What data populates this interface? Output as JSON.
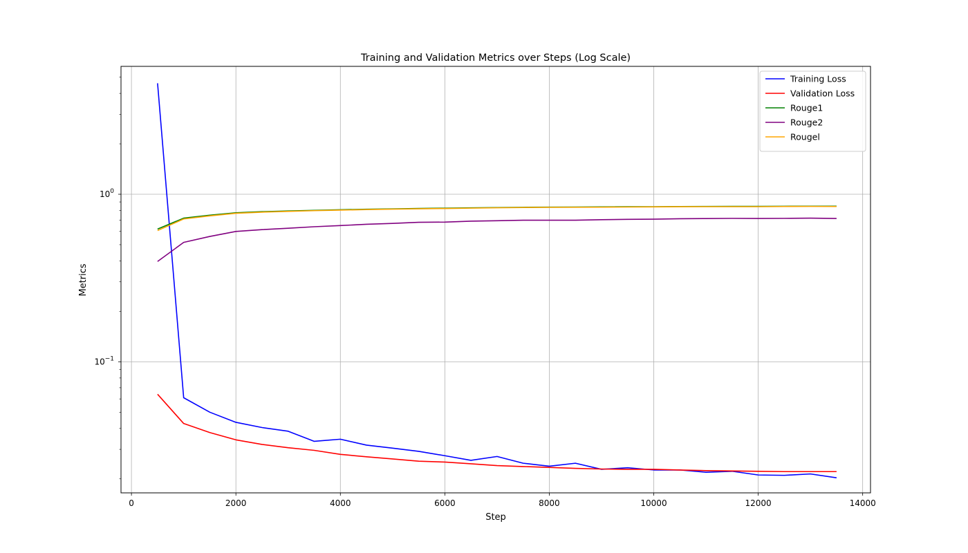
{
  "chart_data": {
    "type": "line",
    "title": "Training and Validation Metrics over Steps (Log Scale)",
    "xlabel": "Step",
    "ylabel": "Metrics",
    "xlim": [
      -200,
      14150
    ],
    "ylim": [
      0.0165,
      5.8
    ],
    "yscale": "log",
    "grid": true,
    "legend_position": "top-right",
    "x_ticks": [
      0,
      2000,
      4000,
      6000,
      8000,
      10000,
      12000,
      14000
    ],
    "x_tick_labels": [
      "0",
      "2000",
      "4000",
      "6000",
      "8000",
      "10000",
      "12000",
      "14000"
    ],
    "y_major_ticks": [
      {
        "value": 0.1,
        "label": "10",
        "exp": "−1"
      },
      {
        "value": 1,
        "label": "10",
        "exp": "0"
      }
    ],
    "x": [
      500,
      1000,
      1500,
      2000,
      2500,
      3000,
      3500,
      4000,
      4500,
      5000,
      5500,
      6000,
      6500,
      7000,
      7500,
      8000,
      8500,
      9000,
      9500,
      10000,
      10500,
      11000,
      11500,
      12000,
      12500,
      13000,
      13500
    ],
    "series": [
      {
        "name": "Training Loss",
        "color": "#0000ff",
        "values": [
          4.6,
          0.061,
          0.05,
          0.0435,
          0.0405,
          0.0385,
          0.0335,
          0.0345,
          0.0318,
          0.0305,
          0.0292,
          0.0275,
          0.0258,
          0.0272,
          0.0248,
          0.0238,
          0.0248,
          0.0228,
          0.0233,
          0.0226,
          0.0226,
          0.0219,
          0.0222,
          0.0211,
          0.021,
          0.0214,
          0.0203
        ]
      },
      {
        "name": "Validation Loss",
        "color": "#ff0000",
        "values": [
          0.064,
          0.0428,
          0.0378,
          0.0342,
          0.0321,
          0.0307,
          0.0296,
          0.028,
          0.0271,
          0.0263,
          0.0255,
          0.0252,
          0.0246,
          0.024,
          0.0237,
          0.0234,
          0.0231,
          0.0229,
          0.0228,
          0.0228,
          0.0226,
          0.0224,
          0.0223,
          0.0222,
          0.0221,
          0.0221,
          0.0221
        ]
      },
      {
        "name": "Rouge1",
        "color": "#008000",
        "values": [
          0.62,
          0.72,
          0.75,
          0.775,
          0.787,
          0.795,
          0.802,
          0.808,
          0.814,
          0.818,
          0.823,
          0.826,
          0.83,
          0.833,
          0.836,
          0.838,
          0.839,
          0.84,
          0.842,
          0.843,
          0.845,
          0.846,
          0.847,
          0.847,
          0.848,
          0.849,
          0.849
        ]
      },
      {
        "name": "Rouge2",
        "color": "#800080",
        "values": [
          0.397,
          0.516,
          0.56,
          0.6,
          0.615,
          0.627,
          0.64,
          0.65,
          0.662,
          0.67,
          0.68,
          0.682,
          0.691,
          0.695,
          0.7,
          0.7,
          0.7,
          0.705,
          0.708,
          0.71,
          0.714,
          0.716,
          0.718,
          0.717,
          0.718,
          0.72,
          0.717
        ]
      },
      {
        "name": "Rougel",
        "color": "#ffa500",
        "values": [
          0.607,
          0.712,
          0.743,
          0.77,
          0.782,
          0.79,
          0.798,
          0.804,
          0.81,
          0.815,
          0.819,
          0.822,
          0.826,
          0.83,
          0.833,
          0.835,
          0.836,
          0.837,
          0.839,
          0.84,
          0.842,
          0.843,
          0.843,
          0.843,
          0.845,
          0.846,
          0.845
        ]
      }
    ]
  }
}
